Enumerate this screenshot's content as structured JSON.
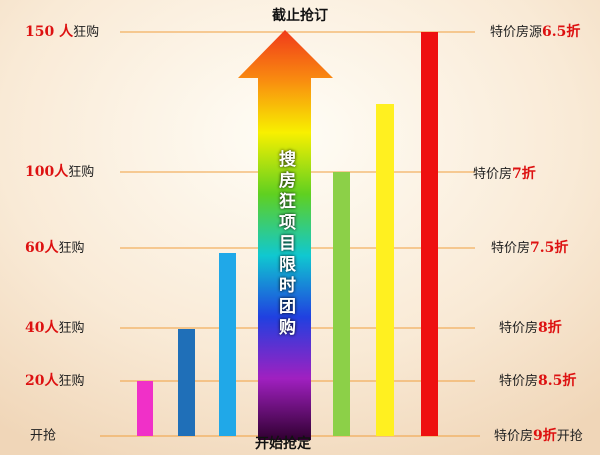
{
  "header": {
    "top": "截止抢订",
    "bottom": "开始抢定",
    "banner": "搜房狂项目限时团购"
  },
  "left": [
    {
      "number": "150 人",
      "text": "狂购"
    },
    {
      "number": "100人",
      "text": "狂购"
    },
    {
      "number": "60人",
      "text": "狂购"
    },
    {
      "number": "40人",
      "text": "狂购"
    },
    {
      "number": "20人",
      "text": "狂购"
    },
    {
      "text": "开抢"
    }
  ],
  "right": [
    {
      "text": "特价房源",
      "number": "6.5折"
    },
    {
      "text": "特价房",
      "number": "7折"
    },
    {
      "text": "特价房",
      "number": "7.5折"
    },
    {
      "text": "特价房",
      "number": "8折"
    },
    {
      "text": "特价房",
      "number": "8.5折"
    },
    {
      "text": "特价房",
      "number": "9折",
      "suffix": "开抢"
    }
  ]
}
